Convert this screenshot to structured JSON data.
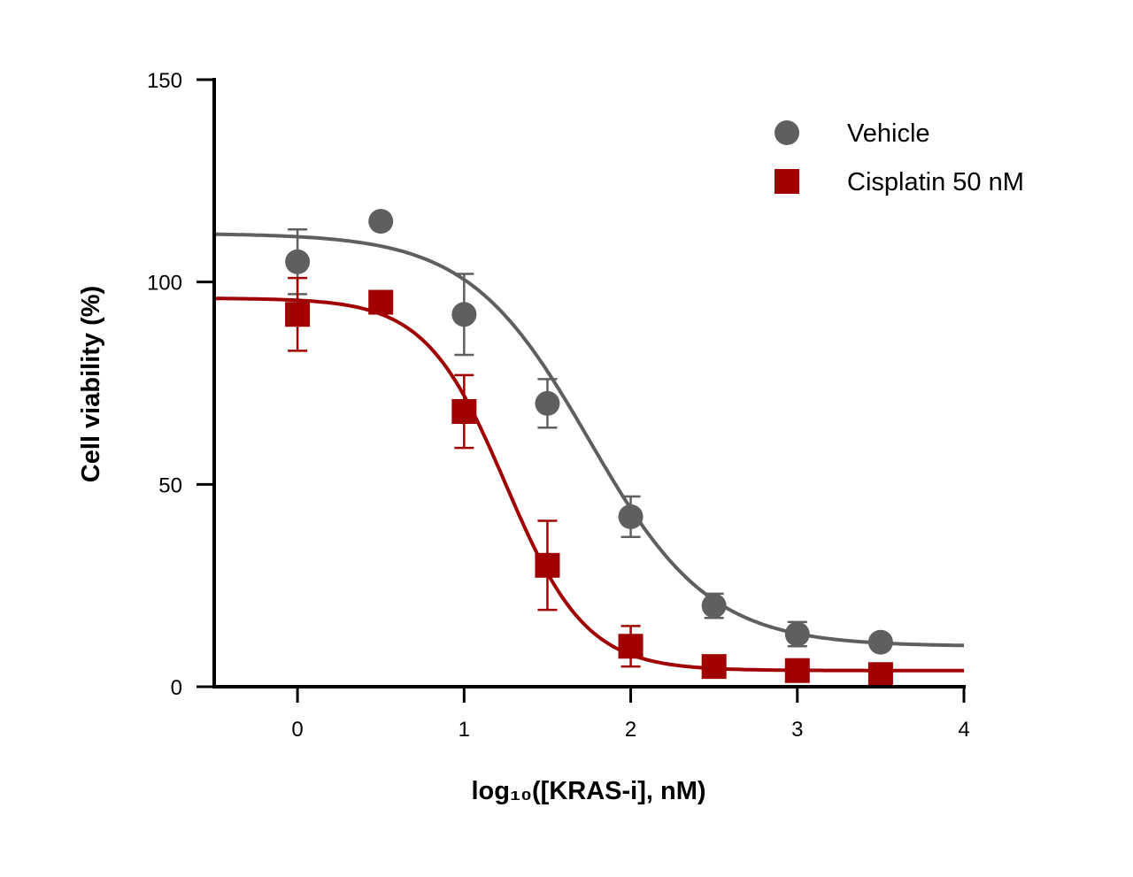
{
  "chart_data": {
    "type": "scatter",
    "title": "",
    "xlabel": "log₁₀([KRAS-i], nM)",
    "ylabel": "Cell viability (%)",
    "xlim": [
      -0.5,
      4
    ],
    "ylim": [
      0,
      150
    ],
    "x_ticks": [
      0,
      1,
      2,
      3,
      4
    ],
    "y_ticks": [
      0,
      50,
      100,
      150
    ],
    "grid": false,
    "legend_position": "top-right",
    "series": [
      {
        "name": "Vehicle",
        "marker": "circle",
        "color": "#5f5f5f",
        "x": [
          0,
          0.5,
          1,
          1.5,
          2,
          2.5,
          3,
          3.5
        ],
        "y": [
          105,
          115,
          92,
          70,
          42,
          20,
          13,
          11
        ],
        "error": [
          8,
          0,
          10,
          6,
          5,
          3,
          3,
          0
        ],
        "fit": {
          "top": 112,
          "bottom": 10,
          "log_ic50": 1.75,
          "hill": 1.2
        }
      },
      {
        "name": "Cisplatin 50 nM",
        "marker": "square",
        "color": "#a00000",
        "x": [
          0,
          0.5,
          1,
          1.5,
          2,
          2.5,
          3,
          3.5
        ],
        "y": [
          92,
          95,
          68,
          30,
          10,
          5,
          4,
          3
        ],
        "error": [
          9,
          0,
          9,
          11,
          5,
          0,
          0,
          0
        ],
        "fit": {
          "top": 96,
          "bottom": 4,
          "log_ic50": 1.25,
          "hill": 1.8
        }
      }
    ]
  }
}
